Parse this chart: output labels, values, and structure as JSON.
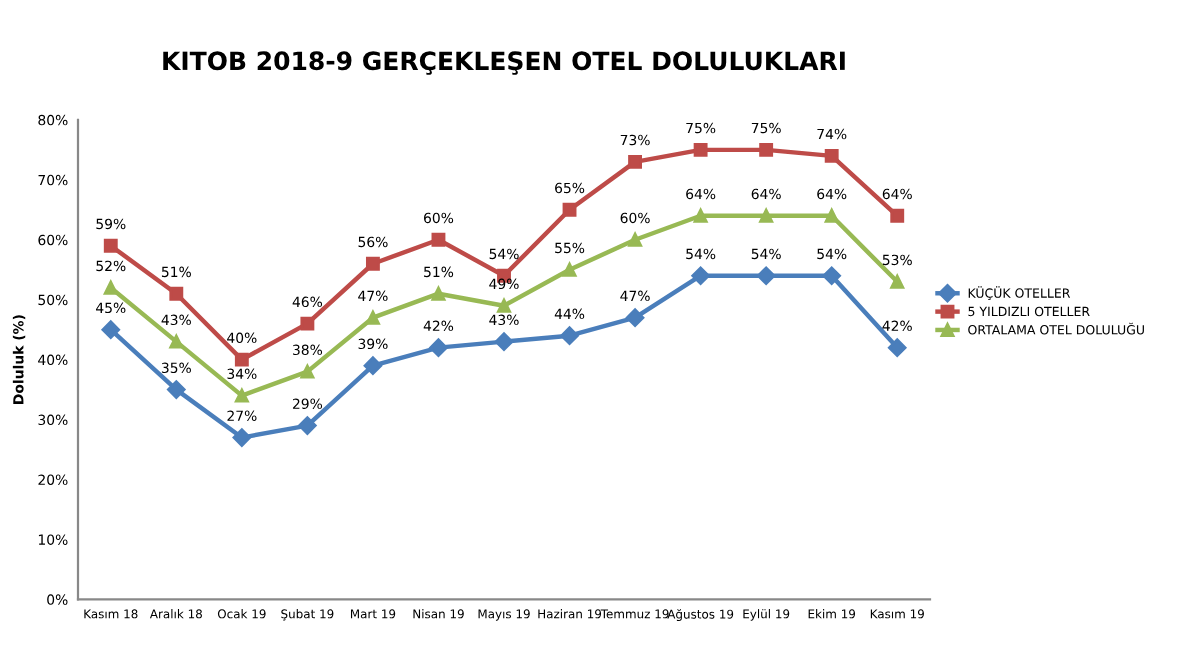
{
  "chart_data": {
    "type": "line",
    "title": "KITOB 2018-9 GERÇEKLEŞEN OTEL DOLULUKLARI",
    "ylabel": "Doluluk (%)",
    "categories": [
      "Kasım 18",
      "Aralık 18",
      "Ocak 19",
      "Şubat 19",
      "Mart 19",
      "Nisan 19",
      "Mayıs 19",
      "Haziran 19",
      "Temmuz 19",
      "Ağustos 19",
      "Eylül 19",
      "Ekim 19",
      "Kasım 19"
    ],
    "series": [
      {
        "name": "KÜÇÜK OTELLER",
        "color": "#4a7ebb",
        "marker": "diamond",
        "values": [
          45,
          35,
          27,
          29,
          39,
          42,
          43,
          44,
          47,
          54,
          54,
          54,
          42
        ],
        "value_labels": [
          "45%",
          "35%",
          "27%",
          "29%",
          "39%",
          "42%",
          "43%",
          "44%",
          "47%",
          "54%",
          "54%",
          "54%",
          "42%"
        ]
      },
      {
        "name": "5 YILDIZLI OTELLER",
        "color": "#be4b48",
        "marker": "square",
        "values": [
          59,
          51,
          40,
          46,
          56,
          60,
          54,
          65,
          73,
          75,
          75,
          74,
          64
        ],
        "value_labels": [
          "59%",
          "51%",
          "40%",
          "46%",
          "56%",
          "60%",
          "54%",
          "65%",
          "73%",
          "75%",
          "75%",
          "74%",
          "64%"
        ]
      },
      {
        "name": "ORTALAMA OTEL DOLULUĞU",
        "color": "#98b954",
        "marker": "triangle",
        "values": [
          52,
          43,
          34,
          38,
          47,
          51,
          49,
          55,
          60,
          64,
          64,
          64,
          53
        ],
        "value_labels": [
          "52%",
          "43%",
          "34%",
          "38%",
          "47%",
          "51%",
          "49%",
          "55%",
          "60%",
          "64%",
          "64%",
          "64%",
          "53%"
        ]
      }
    ],
    "ylim": [
      0,
      80
    ],
    "yticks": [
      {
        "value": 0,
        "label": "0%"
      },
      {
        "value": 10,
        "label": "10%"
      },
      {
        "value": 20,
        "label": "20%"
      },
      {
        "value": 30,
        "label": "30%"
      },
      {
        "value": 40,
        "label": "40%"
      },
      {
        "value": 50,
        "label": "50%"
      },
      {
        "value": 60,
        "label": "60%"
      },
      {
        "value": 70,
        "label": "70%"
      },
      {
        "value": 80,
        "label": "80%"
      }
    ],
    "grid": false,
    "legend": "right"
  }
}
